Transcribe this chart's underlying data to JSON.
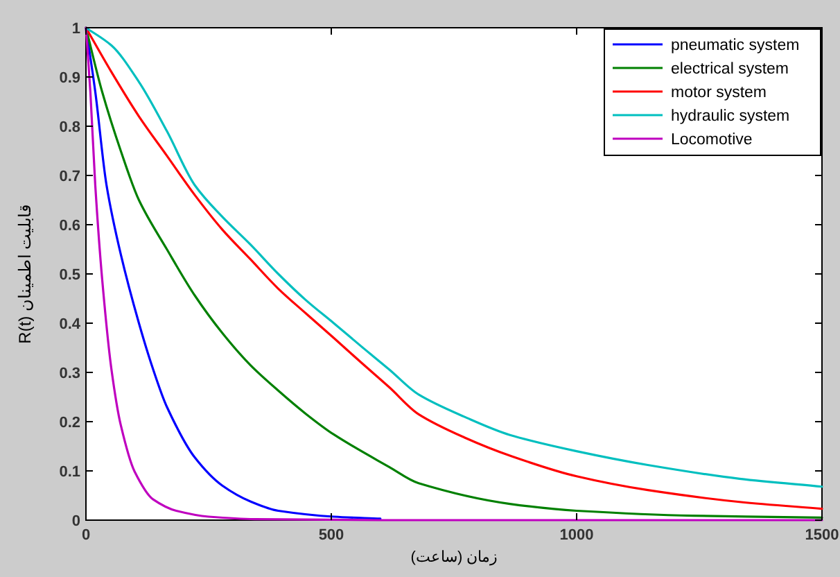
{
  "chart_data": {
    "type": "line",
    "xlabel": "زمان (ساعت)",
    "ylabel": "R(t) قابلیت اطمینان",
    "xlim": [
      0,
      1500
    ],
    "ylim": [
      0,
      1
    ],
    "xticks": [
      0,
      500,
      1000,
      1500
    ],
    "yticks": [
      0,
      0.1,
      0.2,
      0.3,
      0.4,
      0.5,
      0.6,
      0.7,
      0.8,
      0.9,
      1
    ],
    "grid": false,
    "legend": "top right",
    "marker": "none",
    "line_style": "solid",
    "series": [
      {
        "name": "pneumatic system",
        "color": "#0000ff",
        "x": [
          0,
          19,
          42,
          71,
          108,
          137,
          165,
          222,
          278,
          335,
          392,
          505,
          600
        ],
        "values": [
          1,
          0.87,
          0.68,
          0.54,
          0.4,
          0.306,
          0.23,
          0.127,
          0.07,
          0.038,
          0.019,
          0.007,
          0.003
        ]
      },
      {
        "name": "electrical system",
        "color": "#008000",
        "x": [
          0,
          33,
          71,
          108,
          165,
          222,
          278,
          335,
          392,
          448,
          505,
          618,
          678,
          864,
          1000,
          1237,
          1500
        ],
        "values": [
          1,
          0.87,
          0.75,
          0.65,
          0.55,
          0.456,
          0.38,
          0.315,
          0.263,
          0.216,
          0.174,
          0.108,
          0.075,
          0.033,
          0.019,
          0.009,
          0.005
        ]
      },
      {
        "name": "motor system",
        "color": "#ff0000",
        "x": [
          0,
          52,
          108,
          165,
          222,
          278,
          335,
          392,
          448,
          505,
          561,
          618,
          678,
          771,
          864,
          1000,
          1145,
          1332,
          1500
        ],
        "values": [
          1,
          0.91,
          0.82,
          0.74,
          0.66,
          0.59,
          0.53,
          0.47,
          0.42,
          0.37,
          0.32,
          0.27,
          0.215,
          0.168,
          0.131,
          0.089,
          0.061,
          0.037,
          0.023
        ]
      },
      {
        "name": "hydraulic system",
        "color": "#00bfbf",
        "x": [
          0,
          52,
          108,
          165,
          222,
          278,
          335,
          392,
          448,
          505,
          561,
          618,
          678,
          771,
          864,
          1000,
          1145,
          1332,
          1500
        ],
        "values": [
          1,
          0.964,
          0.89,
          0.79,
          0.68,
          0.616,
          0.56,
          0.5,
          0.447,
          0.4,
          0.353,
          0.306,
          0.255,
          0.21,
          0.173,
          0.14,
          0.112,
          0.084,
          0.068
        ]
      },
      {
        "name": "Locomotive",
        "color": "#bf00bf",
        "x": [
          0,
          9,
          19,
          33,
          52,
          71,
          99,
          137,
          184,
          250,
          344,
          600,
          1000,
          1500
        ],
        "values": [
          1,
          0.87,
          0.68,
          0.49,
          0.306,
          0.193,
          0.099,
          0.042,
          0.019,
          0.007,
          0.002,
          0,
          0,
          0
        ]
      }
    ]
  }
}
